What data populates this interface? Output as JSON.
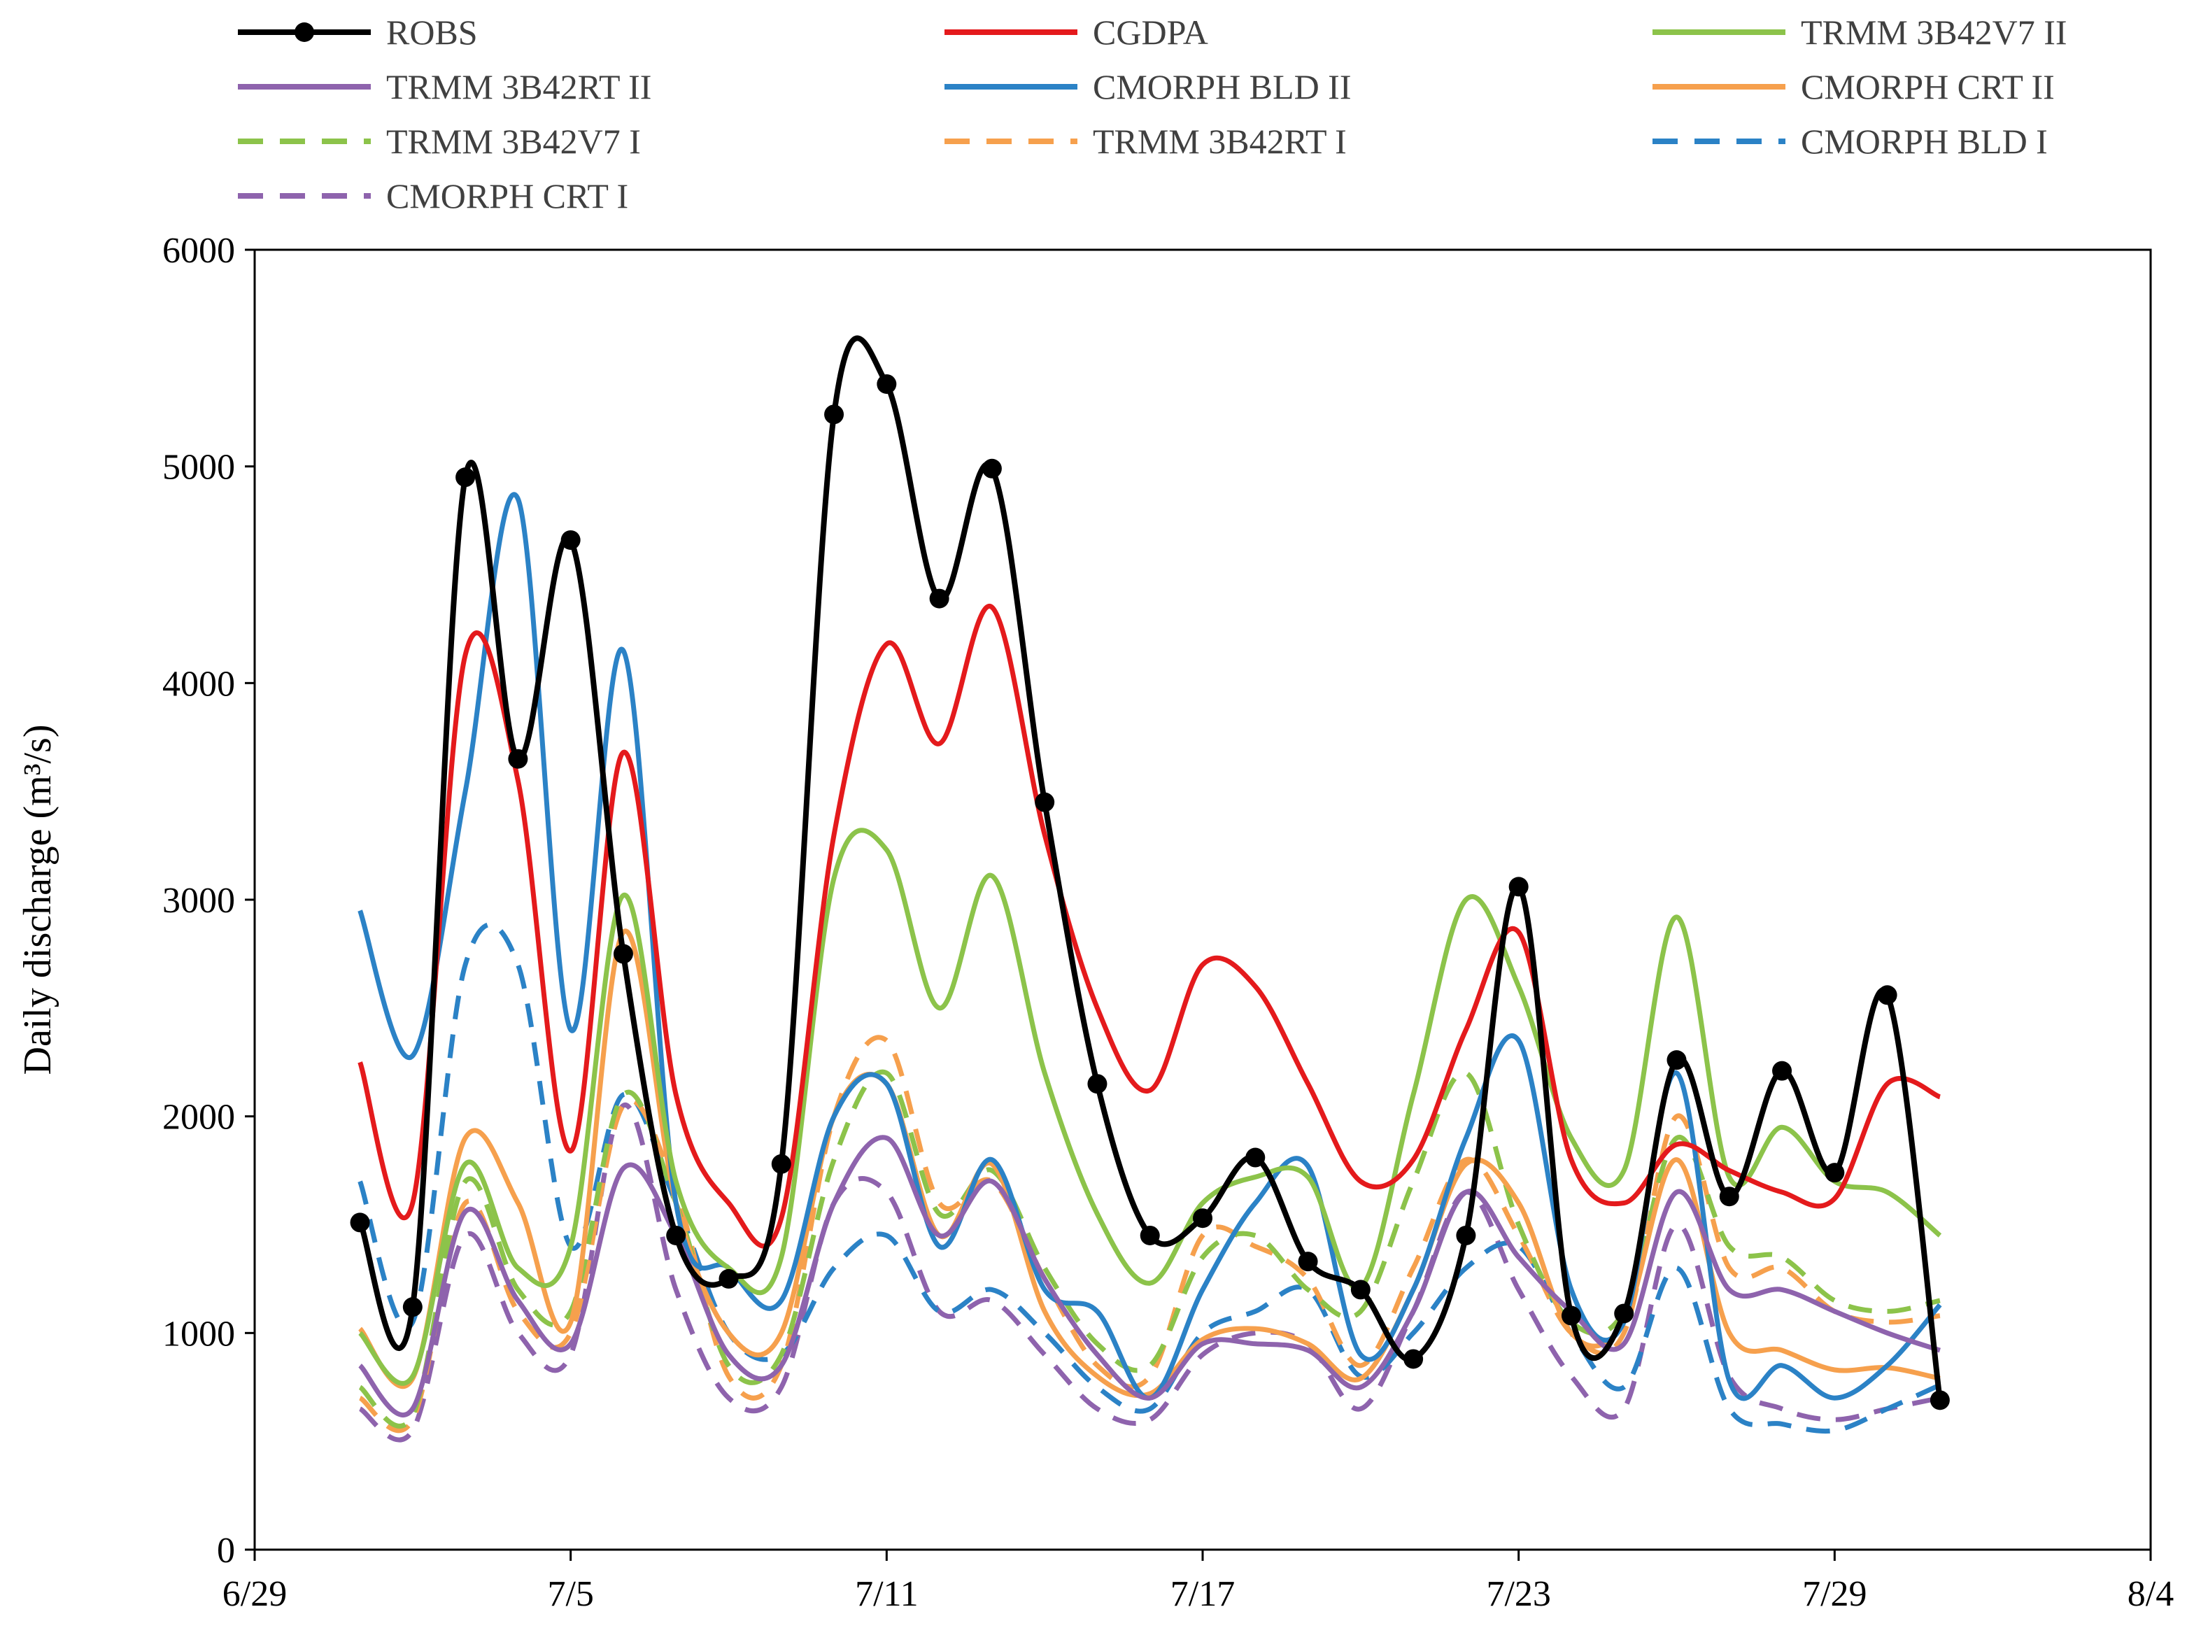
{
  "chart_data": {
    "type": "line",
    "title": "",
    "xlabel": "",
    "ylabel": "Daily discharge (m³/s)",
    "ylim": [
      0,
      6000
    ],
    "yticks": [
      0,
      1000,
      2000,
      3000,
      4000,
      5000,
      6000
    ],
    "xlim": [
      0,
      36
    ],
    "xticks": [
      {
        "value": 0,
        "label": "6/29"
      },
      {
        "value": 6,
        "label": "7/5"
      },
      {
        "value": 12,
        "label": "7/11"
      },
      {
        "value": 18,
        "label": "7/17"
      },
      {
        "value": 24,
        "label": "7/23"
      },
      {
        "value": 30,
        "label": "7/29"
      },
      {
        "value": 36,
        "label": "8/4"
      }
    ],
    "x_start_day": 2,
    "legend": {
      "position": "top",
      "columns": 3
    },
    "series": [
      {
        "name": "ROBS",
        "color": "#000000",
        "dash": "solid",
        "markers": true,
        "values": [
          1510,
          1120,
          4950,
          3650,
          4660,
          2750,
          1450,
          1250,
          1780,
          5240,
          5380,
          4390,
          4990,
          3450,
          2150,
          1450,
          1530,
          1810,
          1330,
          1200,
          880,
          1450,
          3060,
          1080,
          1090,
          2260,
          1630,
          2210,
          1740,
          2560,
          690
        ]
      },
      {
        "name": "CGDPA",
        "color": "#e41a1c",
        "dash": "solid",
        "markers": false,
        "values": [
          2250,
          1600,
          4130,
          3550,
          1840,
          3680,
          2100,
          1600,
          1530,
          3300,
          4180,
          3720,
          4350,
          3300,
          2500,
          2120,
          2700,
          2600,
          2150,
          1700,
          1800,
          2400,
          2850,
          1800,
          1600,
          1870,
          1750,
          1650,
          1620,
          2150,
          2090
        ]
      },
      {
        "name": "TRMM 3B42V7 II",
        "color": "#8cc34a",
        "dash": "solid",
        "markers": false,
        "values": [
          1000,
          800,
          1780,
          1300,
          1400,
          3020,
          1700,
          1300,
          1350,
          3100,
          3230,
          2500,
          3110,
          2200,
          1550,
          1230,
          1600,
          1720,
          1720,
          1210,
          2100,
          3000,
          2600,
          1900,
          1750,
          2920,
          1720,
          1950,
          1700,
          1650,
          1450
        ]
      },
      {
        "name": "TRMM 3B42RT II",
        "color": "#8e63ad",
        "dash": "solid",
        "markers": false,
        "values": [
          850,
          650,
          1560,
          1150,
          950,
          1760,
          1450,
          900,
          850,
          1600,
          1900,
          1450,
          1700,
          1250,
          900,
          700,
          950,
          950,
          920,
          750,
          1100,
          1650,
          1350,
          1100,
          950,
          1650,
          1200,
          1200,
          1100,
          1000,
          920
        ]
      },
      {
        "name": "CMORPH BLD II",
        "color": "#2b82c6",
        "dash": "solid",
        "markers": false,
        "values": [
          2950,
          2280,
          3500,
          4850,
          2400,
          4150,
          1600,
          1300,
          1150,
          2000,
          2150,
          1400,
          1800,
          1200,
          1100,
          700,
          1200,
          1600,
          1770,
          900,
          1200,
          1900,
          2350,
          1200,
          1050,
          2200,
          780,
          850,
          700,
          850,
          1130
        ]
      },
      {
        "name": "CMORPH CRT II",
        "color": "#f6a04d",
        "dash": "solid",
        "markers": false,
        "values": [
          1020,
          790,
          1900,
          1600,
          1050,
          2850,
          1600,
          1000,
          1000,
          2000,
          2150,
          1450,
          1780,
          1100,
          800,
          720,
          970,
          1020,
          950,
          790,
          1200,
          1780,
          1600,
          1000,
          1050,
          1800,
          1000,
          920,
          830,
          840,
          790
        ]
      },
      {
        "name": "TRMM 3B42V7 I",
        "color": "#8cc34a",
        "dash": "dashed",
        "markers": false,
        "values": [
          750,
          620,
          1700,
          1200,
          1100,
          2100,
          1600,
          850,
          900,
          1800,
          2200,
          1550,
          1750,
          1300,
          950,
          850,
          1350,
          1450,
          1200,
          1100,
          1700,
          2200,
          1500,
          1050,
          1100,
          1900,
          1400,
          1350,
          1150,
          1100,
          1150
        ]
      },
      {
        "name": "TRMM 3B42RT I",
        "color": "#f6a04d",
        "dash": "dashed",
        "markers": false,
        "values": [
          700,
          600,
          1600,
          1100,
          1000,
          2050,
          1650,
          800,
          850,
          2000,
          2350,
          1600,
          1700,
          1250,
          850,
          800,
          1450,
          1400,
          1250,
          850,
          1300,
          1800,
          1450,
          1000,
          1000,
          2000,
          1300,
          1300,
          1100,
          1050,
          1080
        ]
      },
      {
        "name": "CMORPH BLD I",
        "color": "#2b82c6",
        "dash": "dashed",
        "markers": false,
        "values": [
          1700,
          1050,
          2700,
          2700,
          1400,
          2100,
          1600,
          1000,
          900,
          1300,
          1450,
          1100,
          1200,
          1000,
          750,
          650,
          1000,
          1100,
          1200,
          800,
          1000,
          1300,
          1400,
          1000,
          750,
          1300,
          650,
          580,
          550,
          650,
          760
        ]
      },
      {
        "name": "CMORPH CRT I",
        "color": "#8e63ad",
        "dash": "dashed",
        "markers": false,
        "values": [
          650,
          550,
          1450,
          1000,
          900,
          2050,
          1200,
          700,
          750,
          1600,
          1650,
          1100,
          1150,
          900,
          650,
          600,
          900,
          1000,
          950,
          650,
          1100,
          1650,
          1200,
          800,
          650,
          1500,
          800,
          650,
          600,
          650,
          700
        ]
      }
    ]
  }
}
